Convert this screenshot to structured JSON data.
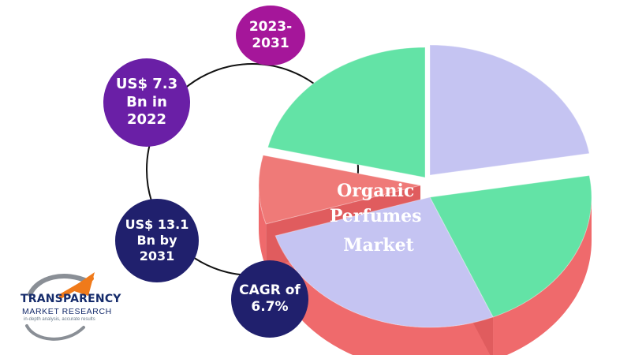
{
  "chart_data": {
    "type": "pie",
    "title": "Organic\nPerfumes\nMarket",
    "slices": [
      {
        "value": 21,
        "color": "#c5c4f2"
      },
      {
        "value": 20,
        "color": "#63e3a6"
      },
      {
        "value": 25,
        "color": "#c5c4f2"
      },
      {
        "value": 8,
        "color": "#ef7a78"
      },
      {
        "value": 20,
        "color": "#63e3a6"
      }
    ]
  },
  "highlights": {
    "period": "2023-\n2031",
    "size_2022": "US$ 7.3\nBn in\n2022",
    "size_2031": "US$ 13.1\nBn by\n2031",
    "cagr": "CAGR of\n6.7%"
  },
  "logo": {
    "name": "TRANSPARENCY",
    "sub": "MARKET RESEARCH",
    "tagline": "in-depth analysis, accurate results"
  },
  "colors": {
    "bubble_magenta": "#a5169a",
    "bubble_violet": "#6a1fa6",
    "bubble_navy": "#20206d",
    "pie_side": "#ef6a6c",
    "logo_blue": "#152b6b",
    "logo_orange": "#f07a1a"
  },
  "icons": [
    "logo-arrow-icon"
  ]
}
